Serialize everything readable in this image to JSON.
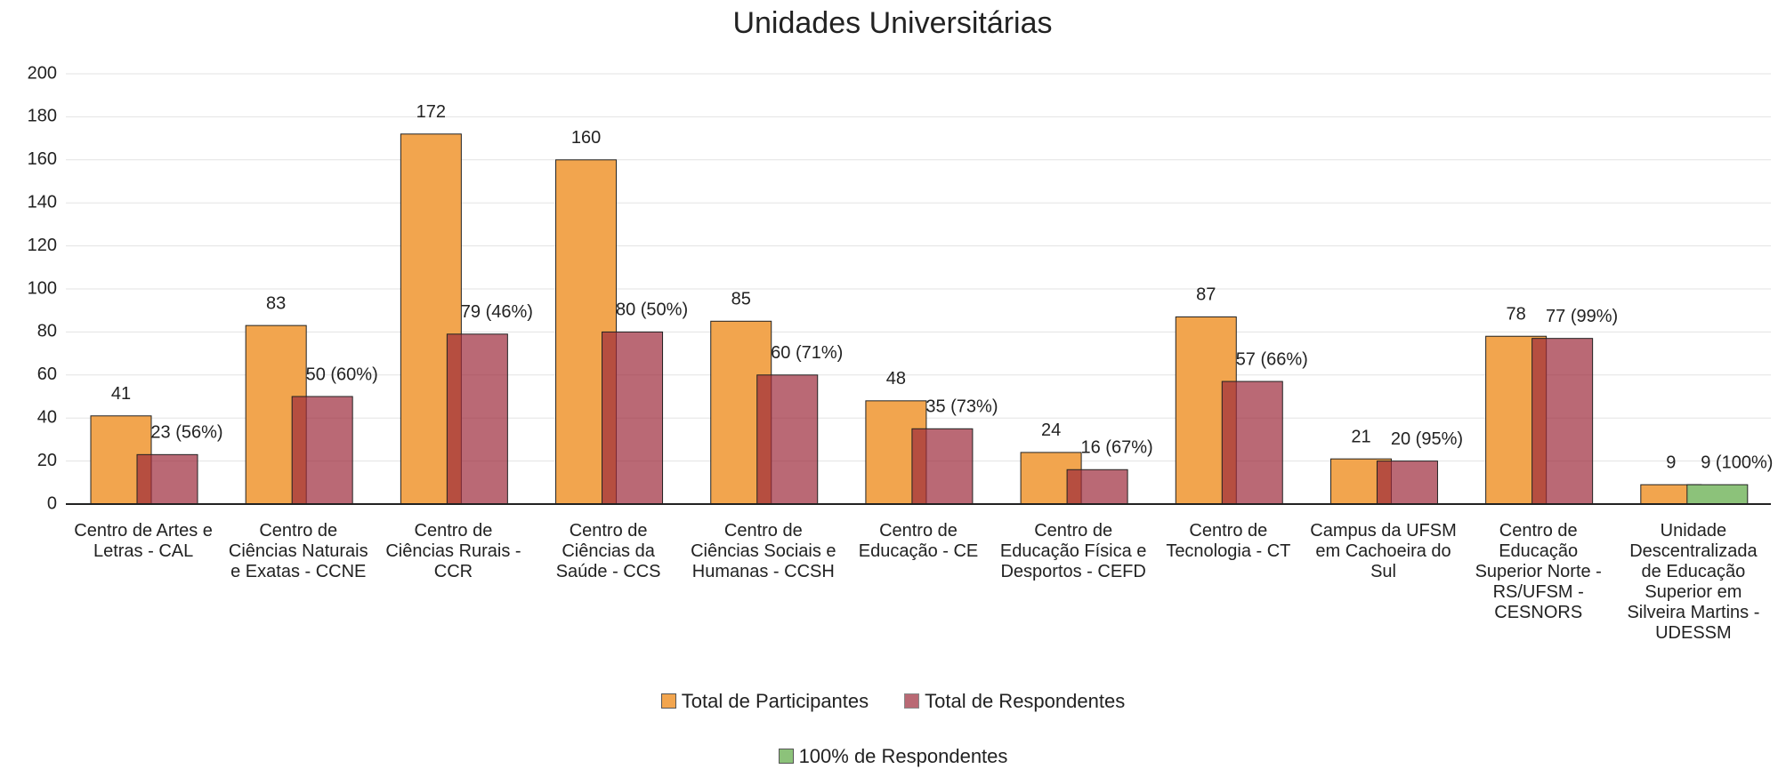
{
  "chart_data": {
    "type": "bar",
    "title": "Unidades Universitárias",
    "categories": [
      "Centro de Artes e Letras - CAL",
      "Centro de Ciências Naturais e Exatas - CCNE",
      "Centro de Ciências Rurais - CCR",
      "Centro de Ciências da Saúde - CCS",
      "Centro de Ciências Sociais e Humanas - CCSH",
      "Centro de Educação - CE",
      "Centro de Educação Física e Desportos - CEFD",
      "Centro de Tecnologia - CT",
      "Campus da UFSM em Cachoeira do Sul",
      "Centro de Educação Superior Norte - RS/UFSM - CESNORS",
      "Unidade Descentralizada de Educação Superior em Silveira Martins - UDESSM"
    ],
    "series": [
      {
        "name": "Total de Participantes",
        "color": "#f2a54e",
        "values": [
          41,
          83,
          172,
          160,
          85,
          48,
          24,
          87,
          21,
          78,
          9
        ]
      },
      {
        "name": "Total de Respondentes",
        "color": "#9c2a3a",
        "values": [
          23,
          50,
          79,
          80,
          60,
          35,
          16,
          57,
          20,
          77,
          null
        ],
        "value_labels": [
          "23 (56%)",
          "50 (60%)",
          "79 (46%)",
          "80 (50%)",
          "60 (71%)",
          "35 (73%)",
          "16 (67%)",
          "57 (66%)",
          "20 (95%)",
          "77 (99%)",
          null
        ]
      },
      {
        "name": "100% de Respondentes",
        "color": "#8cc27a",
        "values": [
          null,
          null,
          null,
          null,
          null,
          null,
          null,
          null,
          null,
          null,
          9
        ],
        "value_labels": [
          null,
          null,
          null,
          null,
          null,
          null,
          null,
          null,
          null,
          null,
          "9 (100%)"
        ]
      }
    ],
    "ylim": [
      0,
      200
    ],
    "yticks": [
      0,
      20,
      40,
      60,
      80,
      100,
      120,
      140,
      160,
      180,
      200
    ],
    "grid": true,
    "legend": "bottom"
  }
}
